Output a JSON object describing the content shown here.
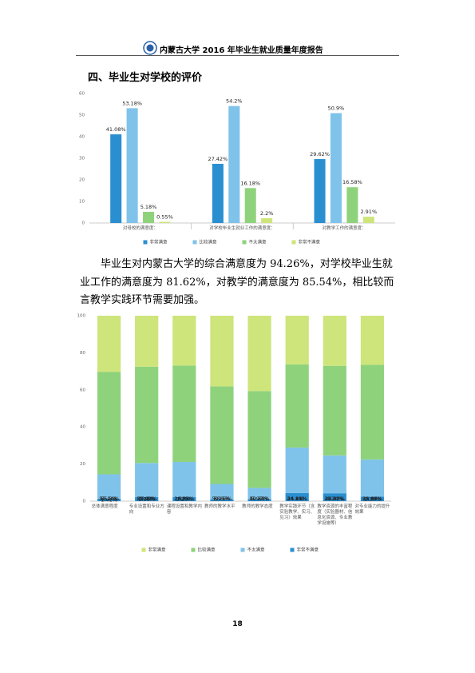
{
  "header": {
    "title": "内蒙古大学 2016 年毕业生就业质量年度报告"
  },
  "heading": "四、毕业生对学校的评价",
  "paragraph": "毕业生对内蒙古大学的综合满意度为 94.26%，对学校毕业生就业工作的满意度为 81.62%，对教学的满意度为 85.54%，相比较而言教学实践环节需要加强。",
  "page_number": "18",
  "chart_data": [
    {
      "type": "bar",
      "categories": [
        "对母校的满意度：",
        "对学校毕业生就业工作的满意度：",
        "对教学工作的满意度："
      ],
      "series": [
        {
          "name": "非常满意",
          "color": "#2a8fd0",
          "values": [
            41.08,
            27.42,
            29.62
          ],
          "value_labels": [
            "41.08%",
            "27.42%",
            "29.62%"
          ]
        },
        {
          "name": "比较满意",
          "color": "#7fc3ea",
          "values": [
            53.18,
            54.2,
            50.9
          ],
          "value_labels": [
            "53.18%",
            "54.2%",
            "50.9%"
          ]
        },
        {
          "name": "不太满意",
          "color": "#8fd27c",
          "values": [
            5.18,
            16.18,
            16.58
          ],
          "value_labels": [
            "5.18%",
            "16.18%",
            "16.58%"
          ]
        },
        {
          "name": "非常不满意",
          "color": "#cde57a",
          "values": [
            0.55,
            2.2,
            2.91
          ],
          "value_labels": [
            "0.55%",
            "2.2%",
            "2.91%"
          ]
        }
      ],
      "ylim": [
        0,
        60
      ],
      "yticks": [
        0,
        10,
        20,
        30,
        40,
        50,
        60
      ],
      "grid": false
    },
    {
      "type": "stacked_bar",
      "categories": [
        "总体满意程度",
        "专业设置和专业方向",
        "课程设置和教学内容",
        "教师的教学水平",
        "教师的教学态度",
        "教学实践环节（含实验教学、实习、见习）效果",
        "教学资源的丰富程度（实验器材、信息化资源、专业教学设施等）",
        "对专业能力的提升效果"
      ],
      "series": [
        {
          "name": "非常满意",
          "color": "#cde57a",
          "values": [
            30.24,
            27.49,
            26.87,
            38.1,
            40.61,
            26.24,
            27.02,
            26.47
          ],
          "value_labels": [
            "30.24%",
            "27.49%",
            "26.87%",
            "38.1%",
            "40.61%",
            "26.24%",
            "27.02%",
            "26.47%"
          ]
        },
        {
          "name": "比较满意",
          "color": "#8fd27c",
          "values": [
            55.3,
            51.92,
            52,
            52.63,
            52.24,
            44.85,
            48.31,
            51.06
          ],
          "value_labels": [
            "55.3%",
            "51.92%",
            "52%",
            "52.63%",
            "52.24%",
            "44.85%",
            "48.31%",
            "51.06%"
          ]
        },
        {
          "name": "不太满意",
          "color": "#7fc3ea",
          "values": [
            13.04,
            18.3,
            18.85,
            8.25,
            5.97,
            24.51,
            20.42,
            20.11
          ],
          "value_labels": [
            "13.04%",
            "18.3%",
            "18.85%",
            "8.25%",
            "5.97%",
            "24.51%",
            "20.42%",
            "20.11%"
          ]
        },
        {
          "name": "非常不满意",
          "color": "#2a8fd0",
          "values": [
            1.41,
            2.28,
            2.28,
            1.02,
            1.18,
            4.4,
            4.24,
            2.36
          ],
          "value_labels": [
            "1.41%",
            "2.28%",
            "2.28%",
            null,
            null,
            "4.4%",
            "4.24%",
            "2.36%"
          ]
        }
      ],
      "ylim": [
        0,
        100
      ],
      "yticks": [
        0,
        20,
        40,
        60,
        80,
        100
      ],
      "grid": false
    }
  ]
}
